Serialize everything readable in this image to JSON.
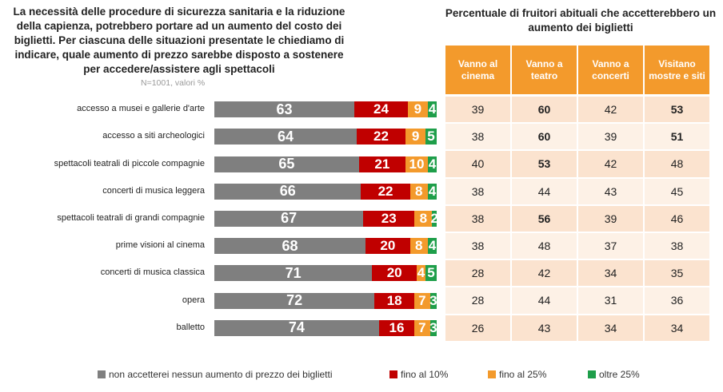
{
  "left_title": "La necessità delle procedure di sicurezza sanitaria e la riduzione della capienza, potrebbero portare ad un aumento del costo dei biglietti. Per ciascuna delle situazioni presentate le chiediamo di indicare, quale aumento di prezzo sarebbe disposto a sostenere per accedere/assistere agli spettacoli",
  "note": "N=1001, valori %",
  "right_title": "Percentuale di fruitori abituali che accetterebbero un aumento dei biglietti",
  "colors": {
    "none": "#7f7f7f",
    "fino10": "#c00000",
    "fino25": "#f39a2c",
    "oltre25": "#1e9e4a",
    "header": "#f39a2c",
    "row_a": "#fbe3cf",
    "row_b": "#fdf1e6"
  },
  "chart_data": {
    "type": "bar",
    "stacked": true,
    "orientation": "horizontal",
    "categories": [
      "accesso a musei e gallerie d'arte",
      "accesso a siti archeologici",
      "spettacoli teatrali di piccole compagnie",
      "concerti di musica leggera",
      "spettacoli teatrali di grandi compagnie",
      "prime visioni al cinema",
      "concerti di musica classica",
      "opera",
      "balletto"
    ],
    "series": [
      {
        "name": "non accetterei nessun aumento di prezzo dei biglietti",
        "values": [
          63,
          64,
          65,
          66,
          67,
          68,
          71,
          72,
          74
        ]
      },
      {
        "name": "fino al 10%",
        "values": [
          24,
          22,
          21,
          22,
          23,
          20,
          20,
          18,
          16
        ]
      },
      {
        "name": "fino al 25%",
        "values": [
          9,
          9,
          10,
          8,
          8,
          8,
          4,
          7,
          7
        ]
      },
      {
        "name": "oltre 25%",
        "values": [
          4,
          5,
          4,
          4,
          2,
          4,
          5,
          3,
          3
        ]
      }
    ],
    "xlim": [
      0,
      100
    ],
    "table": {
      "columns": [
        "Vanno al cinema",
        "Vanno a teatro",
        "Vanno a concerti",
        "Visitano mostre e siti"
      ],
      "rows": [
        [
          39,
          60,
          42,
          53
        ],
        [
          38,
          60,
          39,
          51
        ],
        [
          40,
          53,
          42,
          48
        ],
        [
          38,
          44,
          43,
          45
        ],
        [
          38,
          56,
          39,
          46
        ],
        [
          38,
          48,
          37,
          38
        ],
        [
          28,
          42,
          34,
          35
        ],
        [
          28,
          44,
          31,
          36
        ],
        [
          26,
          43,
          34,
          34
        ]
      ],
      "bold": [
        [
          false,
          true,
          false,
          true
        ],
        [
          false,
          true,
          false,
          true
        ],
        [
          false,
          true,
          false,
          false
        ],
        [
          false,
          false,
          false,
          false
        ],
        [
          false,
          true,
          false,
          false
        ],
        [
          false,
          false,
          false,
          false
        ],
        [
          false,
          false,
          false,
          false
        ],
        [
          false,
          false,
          false,
          false
        ],
        [
          false,
          false,
          false,
          false
        ]
      ]
    }
  }
}
